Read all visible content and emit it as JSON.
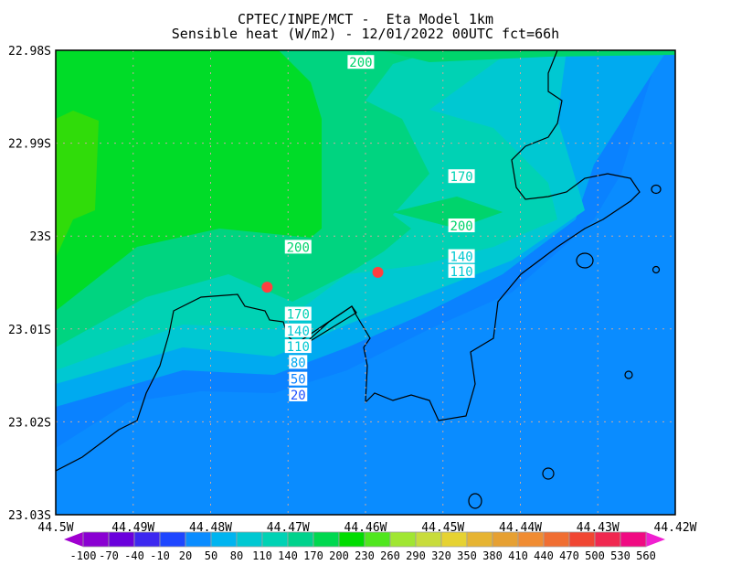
{
  "title_line1": "CPTEC/INPE/MCT -  Eta Model 1km",
  "title_line2": "Sensible heat (W/m2) - 12/01/2022 00UTC fct=66h",
  "chart_data": {
    "type": "heatmap",
    "title": "Sensible heat (W/m2) - 12/01/2022 00UTC fct=66h",
    "xlim": [
      -44.5,
      -44.42
    ],
    "ylim": [
      -23.03,
      -22.98
    ],
    "x_ticks": [
      -44.5,
      -44.49,
      -44.48,
      -44.47,
      -44.46,
      -44.45,
      -44.44,
      -44.43,
      -44.42
    ],
    "x_tick_labels": [
      "44.5W",
      "44.49W",
      "44.48W",
      "44.47W",
      "44.46W",
      "44.45W",
      "44.44W",
      "44.43W",
      "44.42W"
    ],
    "y_ticks": [
      -22.98,
      -22.99,
      -23.0,
      -23.01,
      -23.02,
      -23.03
    ],
    "y_tick_labels": [
      "22.98S",
      "22.99S",
      "23S",
      "23.01S",
      "23.02S",
      "23.03S"
    ],
    "grid": true,
    "colorbar": {
      "levels": [
        -100,
        -70,
        -40,
        -10,
        20,
        50,
        80,
        110,
        140,
        170,
        200,
        230,
        260,
        290,
        320,
        350,
        380,
        410,
        440,
        470,
        500,
        530,
        560
      ],
      "colors": [
        "#8a00d2",
        "#6a00dc",
        "#3c28f0",
        "#1e46ff",
        "#0a8cff",
        "#00b4f0",
        "#00c8d2",
        "#00d2b4",
        "#00d28c",
        "#00d850",
        "#00dc00",
        "#50e61e",
        "#a0e632",
        "#c8dc3c",
        "#e6d232",
        "#e6b432",
        "#e6a032",
        "#f08c32",
        "#f06e32",
        "#f04632",
        "#f02850",
        "#f00a82"
      ],
      "placement": "bottom"
    },
    "contour_labels": [
      {
        "text": "200",
        "lon": -44.4606,
        "lat": -22.9813
      },
      {
        "text": "170",
        "lon": -44.4476,
        "lat": -22.9936
      },
      {
        "text": "200",
        "lon": -44.4476,
        "lat": -22.9989
      },
      {
        "text": "200",
        "lon": -44.4687,
        "lat": -23.0012
      },
      {
        "text": "140",
        "lon": -44.4476,
        "lat": -23.0022
      },
      {
        "text": "110",
        "lon": -44.4476,
        "lat": -23.0038
      },
      {
        "text": "170",
        "lon": -44.4687,
        "lat": -23.0084
      },
      {
        "text": "140",
        "lon": -44.4687,
        "lat": -23.0102
      },
      {
        "text": "110",
        "lon": -44.4687,
        "lat": -23.0119
      },
      {
        "text": "80",
        "lon": -44.4687,
        "lat": -23.0136
      },
      {
        "text": "50",
        "lon": -44.4687,
        "lat": -23.0154
      },
      {
        "text": "20",
        "lon": -44.4687,
        "lat": -23.0171
      }
    ],
    "markers": [
      {
        "lon": -44.4727,
        "lat": -23.0055,
        "color": "#ff4040"
      },
      {
        "lon": -44.4584,
        "lat": -23.0039,
        "color": "#ff4040"
      }
    ]
  }
}
